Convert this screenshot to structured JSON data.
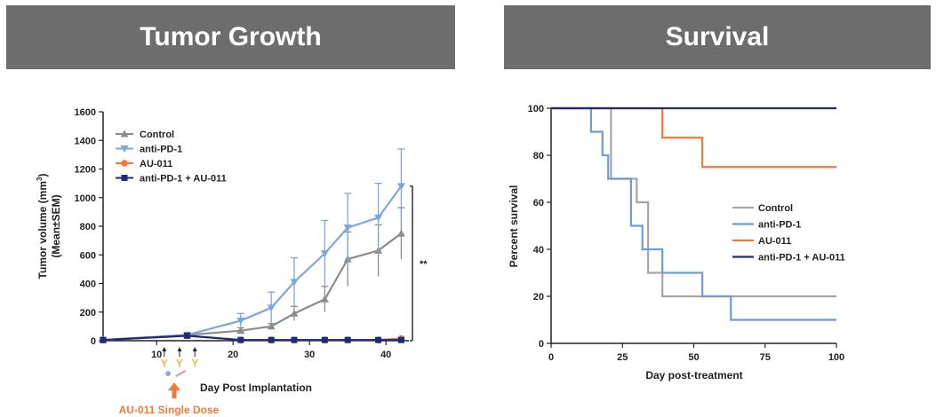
{
  "banners": {
    "left": "Tumor Growth",
    "right": "Survival"
  },
  "colors": {
    "Control": "#8c8c8c",
    "anti-PD-1": "#7ea6de",
    "AU-011": "#f07a3a",
    "anti-PD-1 + AU-011": "#1f2a7a",
    "km_control": "#a6a6a6",
    "km_anti_pd1": "#6f9bd8",
    "km_au011": "#ef7a3b",
    "km_combo": "#23287a",
    "significance_bar": "#222222",
    "dose_marker": "#f07a3a",
    "dose_vial": "#f2b84b"
  },
  "chart_data": [
    {
      "type": "line",
      "xlabel": "Day Post Implantation",
      "ylabel": "Tumor volume (mm³) (Mean±SEM)",
      "ylabel_lines": [
        "Tumor volume (mm",
        "(Mean±SEM)"
      ],
      "ylabel_sup": "3",
      "ylabel_tail": ")",
      "xlim": [
        3,
        43
      ],
      "ylim": [
        0,
        1600
      ],
      "xticks": [
        10,
        20,
        30,
        40
      ],
      "yticks": [
        0,
        200,
        400,
        600,
        800,
        1000,
        1200,
        1400,
        1600
      ],
      "grid": false,
      "legend_position": "top-left",
      "annotation": "**",
      "dose_days": [
        11,
        13,
        15
      ],
      "dose_label": "AU-011 Single Dose",
      "series": [
        {
          "name": "Control",
          "marker": "triangle-up",
          "x": [
            3,
            14,
            21,
            25,
            28,
            32,
            35,
            39,
            42
          ],
          "y": [
            5,
            40,
            70,
            100,
            190,
            290,
            570,
            630,
            750
          ],
          "err": [
            0,
            5,
            20,
            20,
            50,
            90,
            190,
            180,
            180
          ]
        },
        {
          "name": "anti-PD-1",
          "marker": "triangle-down",
          "x": [
            3,
            14,
            21,
            25,
            28,
            32,
            35,
            39,
            42
          ],
          "y": [
            5,
            40,
            140,
            230,
            410,
            610,
            790,
            860,
            1080
          ],
          "err": [
            0,
            5,
            50,
            110,
            170,
            230,
            240,
            240,
            260
          ]
        },
        {
          "name": "AU-011",
          "marker": "circle",
          "x": [
            3,
            14,
            21,
            25,
            28,
            32,
            35,
            39,
            42
          ],
          "y": [
            5,
            35,
            5,
            5,
            5,
            5,
            5,
            5,
            15
          ],
          "err": [
            0,
            5,
            0,
            0,
            0,
            0,
            0,
            0,
            0
          ]
        },
        {
          "name": "anti-PD-1 + AU-011",
          "marker": "square",
          "x": [
            3,
            14,
            21,
            25,
            28,
            32,
            35,
            39,
            42
          ],
          "y": [
            5,
            35,
            5,
            5,
            5,
            5,
            5,
            5,
            5
          ],
          "err": [
            0,
            0,
            0,
            0,
            0,
            0,
            0,
            0,
            0
          ]
        }
      ]
    },
    {
      "type": "line",
      "step": true,
      "xlabel": "Day post-treatment",
      "ylabel": "Percent survival",
      "xlim": [
        0,
        100
      ],
      "ylim": [
        0,
        100
      ],
      "xticks": [
        0,
        25,
        50,
        75,
        100
      ],
      "yticks": [
        0,
        20,
        40,
        60,
        80,
        100
      ],
      "grid": false,
      "legend_position": "right",
      "series": [
        {
          "name": "Control",
          "x": [
            0,
            21,
            21,
            30,
            30,
            34,
            34,
            39,
            39,
            100
          ],
          "y": [
            100,
            100,
            70,
            70,
            60,
            60,
            30,
            30,
            20,
            20
          ]
        },
        {
          "name": "anti-PD-1",
          "x": [
            0,
            14,
            14,
            18,
            18,
            20,
            20,
            28,
            28,
            32,
            32,
            39,
            39,
            53,
            53,
            63,
            63,
            100
          ],
          "y": [
            100,
            100,
            90,
            90,
            80,
            80,
            70,
            70,
            50,
            50,
            40,
            40,
            30,
            30,
            20,
            20,
            10,
            10
          ]
        },
        {
          "name": "AU-011",
          "x": [
            0,
            39,
            39,
            53,
            53,
            100
          ],
          "y": [
            100,
            100,
            87.5,
            87.5,
            75,
            75
          ]
        },
        {
          "name": "anti-PD-1 + AU-011",
          "x": [
            0,
            100
          ],
          "y": [
            100,
            100
          ]
        }
      ]
    }
  ]
}
